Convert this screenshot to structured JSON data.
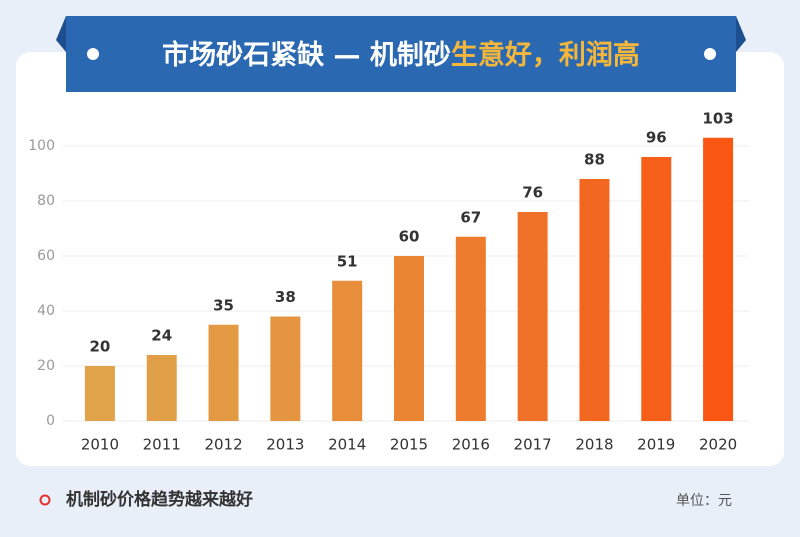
{
  "chart_data": {
    "type": "bar",
    "title": "市场砂石紧缺 — 机制砂",
    "title_highlight": "生意好，利润高",
    "note": "机制砂价格趋势越来越好",
    "unit": "单位：元",
    "categories": [
      "2010",
      "2011",
      "2012",
      "2013",
      "2014",
      "2015",
      "2016",
      "2017",
      "2018",
      "2019",
      "2020"
    ],
    "values": [
      20,
      24,
      35,
      38,
      51,
      60,
      67,
      76,
      88,
      96,
      103
    ],
    "colors": [
      "#e0a34a",
      "#e19f47",
      "#e39a43",
      "#e5943f",
      "#e88d3a",
      "#ea8534",
      "#ed7c2e",
      "#f07228",
      "#f36821",
      "#f65f1a",
      "#f95713"
    ],
    "ylim": [
      0,
      100
    ],
    "yticks": [
      0,
      20,
      40,
      60,
      80,
      100
    ],
    "grid": true
  }
}
